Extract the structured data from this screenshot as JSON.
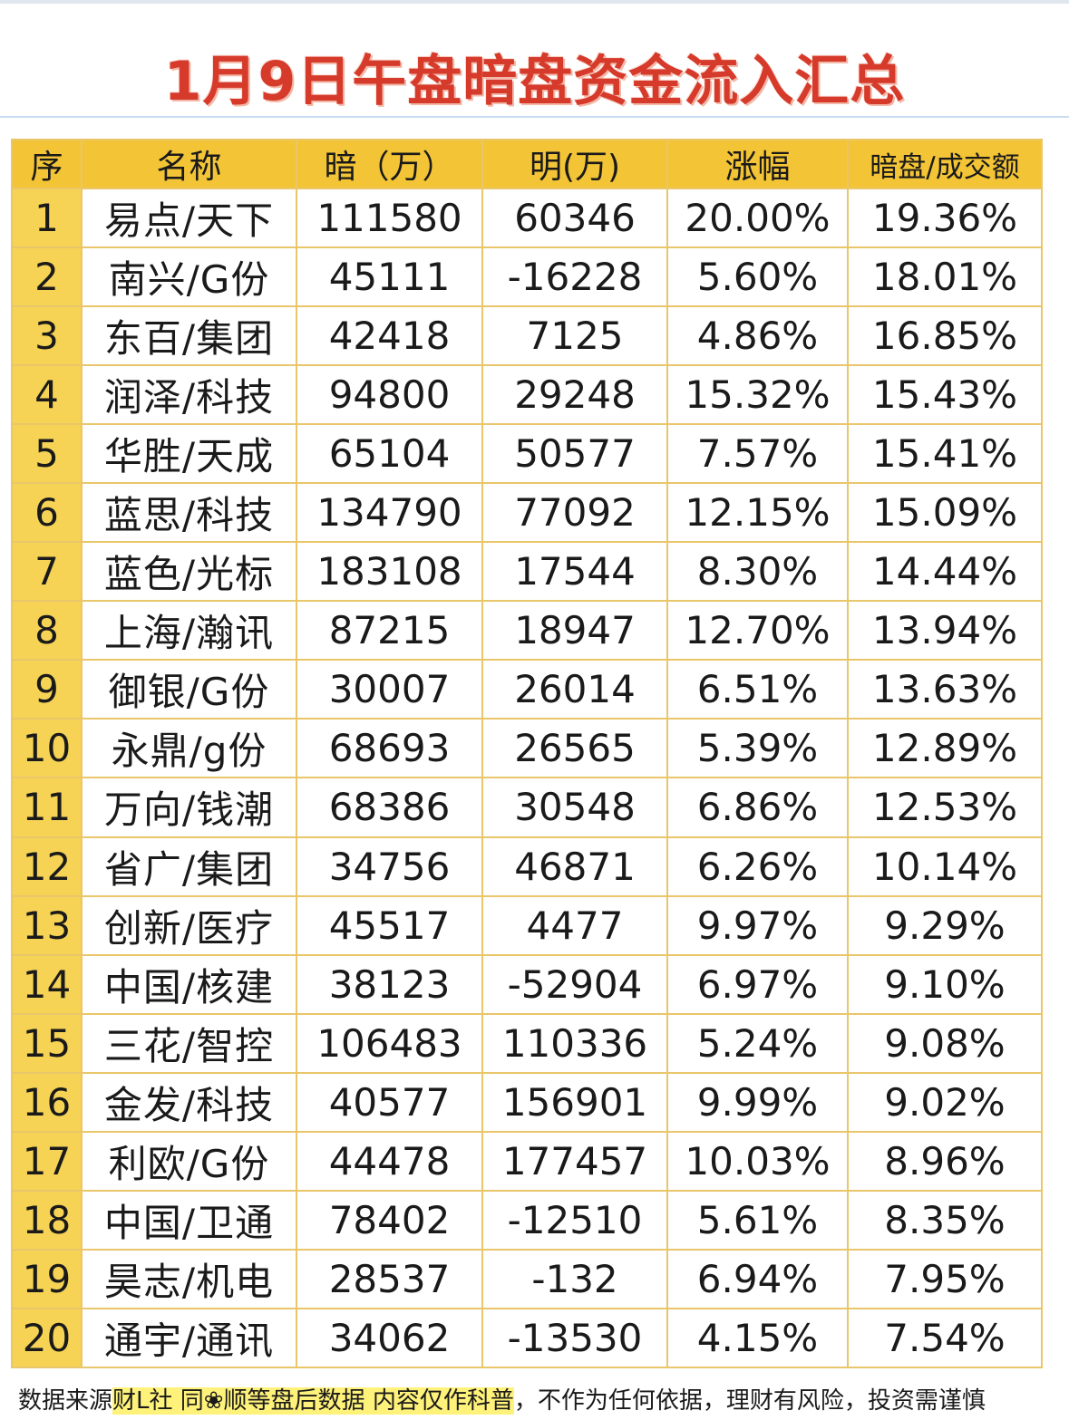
{
  "title": "1月9日午盘暗盘资金流入汇总",
  "table": {
    "headers": [
      "序",
      "名称",
      "暗（万）",
      "明(万)",
      "涨幅",
      "暗盘/成交额"
    ],
    "rows": [
      {
        "idx": "1",
        "name": "易点/天下",
        "dark": "111580",
        "light": "60346",
        "change": "20.00%",
        "ratio": "19.36%"
      },
      {
        "idx": "2",
        "name": "南兴/G份",
        "dark": "45111",
        "light": "-16228",
        "change": "5.60%",
        "ratio": "18.01%"
      },
      {
        "idx": "3",
        "name": "东百/集团",
        "dark": "42418",
        "light": "7125",
        "change": "4.86%",
        "ratio": "16.85%"
      },
      {
        "idx": "4",
        "name": "润泽/科技",
        "dark": "94800",
        "light": "29248",
        "change": "15.32%",
        "ratio": "15.43%"
      },
      {
        "idx": "5",
        "name": "华胜/天成",
        "dark": "65104",
        "light": "50577",
        "change": "7.57%",
        "ratio": "15.41%"
      },
      {
        "idx": "6",
        "name": "蓝思/科技",
        "dark": "134790",
        "light": "77092",
        "change": "12.15%",
        "ratio": "15.09%"
      },
      {
        "idx": "7",
        "name": "蓝色/光标",
        "dark": "183108",
        "light": "17544",
        "change": "8.30%",
        "ratio": "14.44%"
      },
      {
        "idx": "8",
        "name": "上海/瀚讯",
        "dark": "87215",
        "light": "18947",
        "change": "12.70%",
        "ratio": "13.94%"
      },
      {
        "idx": "9",
        "name": "御银/G份",
        "dark": "30007",
        "light": "26014",
        "change": "6.51%",
        "ratio": "13.63%"
      },
      {
        "idx": "10",
        "name": "永鼎/g份",
        "dark": "68693",
        "light": "26565",
        "change": "5.39%",
        "ratio": "12.89%"
      },
      {
        "idx": "11",
        "name": "万向/钱潮",
        "dark": "68386",
        "light": "30548",
        "change": "6.86%",
        "ratio": "12.53%"
      },
      {
        "idx": "12",
        "name": "省广/集团",
        "dark": "34756",
        "light": "46871",
        "change": "6.26%",
        "ratio": "10.14%"
      },
      {
        "idx": "13",
        "name": "创新/医疗",
        "dark": "45517",
        "light": "4477",
        "change": "9.97%",
        "ratio": "9.29%"
      },
      {
        "idx": "14",
        "name": "中国/核建",
        "dark": "38123",
        "light": "-52904",
        "change": "6.97%",
        "ratio": "9.10%"
      },
      {
        "idx": "15",
        "name": "三花/智控",
        "dark": "106483",
        "light": "110336",
        "change": "5.24%",
        "ratio": "9.08%"
      },
      {
        "idx": "16",
        "name": "金发/科技",
        "dark": "40577",
        "light": "156901",
        "change": "9.99%",
        "ratio": "9.02%"
      },
      {
        "idx": "17",
        "name": "利欧/G份",
        "dark": "44478",
        "light": "177457",
        "change": "10.03%",
        "ratio": "8.96%"
      },
      {
        "idx": "18",
        "name": "中国/卫通",
        "dark": "78402",
        "light": "-12510",
        "change": "5.61%",
        "ratio": "8.35%"
      },
      {
        "idx": "19",
        "name": "昊志/机电",
        "dark": "28537",
        "light": "-132",
        "change": "6.94%",
        "ratio": "7.95%"
      },
      {
        "idx": "20",
        "name": "通宇/通讯",
        "dark": "34062",
        "light": "-13530",
        "change": "4.15%",
        "ratio": "7.54%"
      }
    ]
  },
  "footer": {
    "prefix": "数据来源",
    "highlight1": "财L社 同❀顺等盘后数据 内容仅作科普",
    "suffix": "，不作为任何依据，理财有风险，投资需谨慎"
  },
  "colors": {
    "title": "#d63a2a",
    "header_bg": "#f3c435",
    "name_text": "#c8231a",
    "negative_text": "#2e7d32",
    "ratio_text": "#1e3e9e"
  }
}
